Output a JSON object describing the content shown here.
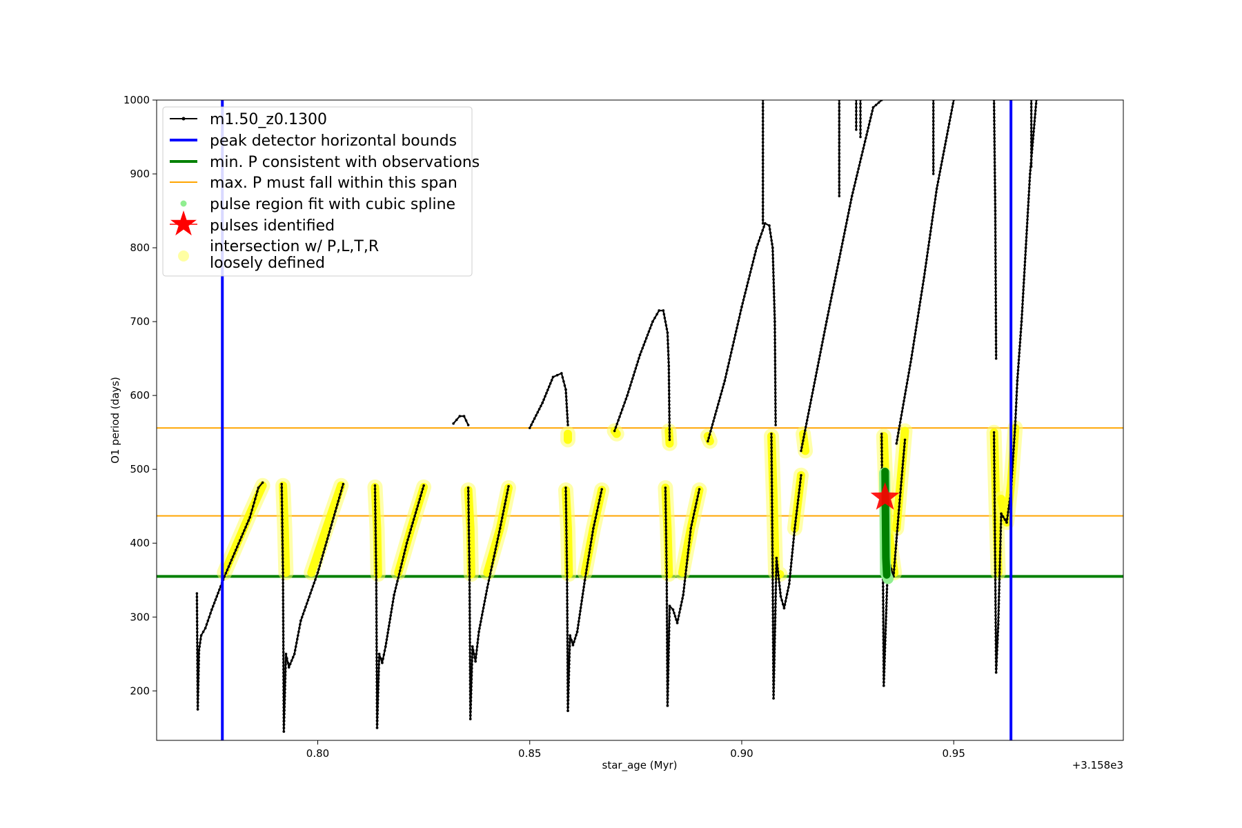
{
  "chart_data": {
    "type": "scatter",
    "xlabel": "star_age (Myr)",
    "ylabel": "O1 period (days)",
    "x_offset_label": "+3.158e3",
    "xlim": [
      3158.762,
      3158.99
    ],
    "ylim": [
      133,
      1000
    ],
    "xticks": [
      {
        "value": 3158.8,
        "label": "0.80"
      },
      {
        "value": 3158.85,
        "label": "0.85"
      },
      {
        "value": 3158.9,
        "label": "0.90"
      },
      {
        "value": 3158.95,
        "label": "0.95"
      }
    ],
    "yticks": [
      {
        "value": 200,
        "label": "200"
      },
      {
        "value": 300,
        "label": "300"
      },
      {
        "value": 400,
        "label": "400"
      },
      {
        "value": 500,
        "label": "500"
      },
      {
        "value": 600,
        "label": "600"
      },
      {
        "value": 700,
        "label": "700"
      },
      {
        "value": 800,
        "label": "800"
      },
      {
        "value": 900,
        "label": "900"
      },
      {
        "value": 1000,
        "label": "1000"
      }
    ],
    "legend_position": "upper-left",
    "legend": [
      {
        "label": "m1.50_z0.1300",
        "style": "black-line-dots"
      },
      {
        "label": "peak detector horizontal bounds",
        "style": "blue-line"
      },
      {
        "label": "min. P consistent with observations",
        "style": "green-line"
      },
      {
        "label": "max. P must fall within this span",
        "style": "orange-line"
      },
      {
        "label": "pulse region fit with cubic spline",
        "style": "lightgreen-dot"
      },
      {
        "label": "pulses identified",
        "style": "red-star"
      },
      {
        "label": "intersection w/ P,L,T,R",
        "label2": "loosely defined",
        "style": "yellow-dot"
      }
    ],
    "vlines": [
      {
        "name": "peak detector horizontal bounds",
        "x": 3158.7775,
        "color": "#0000ff"
      },
      {
        "name": "peak detector horizontal bounds",
        "x": 3158.9635,
        "color": "#0000ff"
      }
    ],
    "hlines": [
      {
        "name": "min. P consistent with observations",
        "y": 355,
        "color": "#008000"
      },
      {
        "name": "max. P must fall within this span",
        "y": 556,
        "color": "#ffa500"
      },
      {
        "name": "max. P must fall within this span",
        "y": 437,
        "color": "#ffa500"
      }
    ],
    "series": [
      {
        "name": "m1.50_z0.1300",
        "color": "#000000",
        "segments": [
          [
            [
              3158.7715,
              332
            ],
            [
              3158.7717,
              175
            ],
            [
              3158.772,
              255
            ],
            [
              3158.7725,
              275
            ],
            [
              3158.7735,
              285
            ],
            [
              3158.775,
              310
            ],
            [
              3158.778,
              355
            ],
            [
              3158.781,
              395
            ],
            [
              3158.784,
              435
            ],
            [
              3158.786,
              475
            ],
            [
              3158.787,
              482
            ]
          ],
          [
            [
              3158.7915,
              480
            ],
            [
              3158.7918,
              360
            ],
            [
              3158.792,
              145
            ],
            [
              3158.7925,
              250
            ],
            [
              3158.7932,
              232
            ],
            [
              3158.7945,
              250
            ],
            [
              3158.796,
              295
            ],
            [
              3158.8,
              360
            ],
            [
              3158.803,
              420
            ],
            [
              3158.806,
              480
            ]
          ],
          [
            [
              3158.8135,
              478
            ],
            [
              3158.8138,
              355
            ],
            [
              3158.814,
              150
            ],
            [
              3158.8145,
              250
            ],
            [
              3158.8152,
              238
            ],
            [
              3158.816,
              260
            ],
            [
              3158.818,
              330
            ],
            [
              3158.821,
              400
            ],
            [
              3158.825,
              478
            ]
          ],
          [
            [
              3158.8355,
              475
            ],
            [
              3158.8358,
              355
            ],
            [
              3158.836,
              162
            ],
            [
              3158.8365,
              260
            ],
            [
              3158.8372,
              240
            ],
            [
              3158.838,
              280
            ],
            [
              3158.84,
              340
            ],
            [
              3158.843,
              420
            ],
            [
              3158.845,
              477
            ]
          ],
          [
            [
              3158.8585,
              475
            ],
            [
              3158.8588,
              360
            ],
            [
              3158.859,
              173
            ],
            [
              3158.8595,
              275
            ],
            [
              3158.8602,
              262
            ],
            [
              3158.8612,
              280
            ],
            [
              3158.863,
              350
            ],
            [
              3158.865,
              420
            ],
            [
              3158.867,
              473
            ]
          ],
          [
            [
              3158.882,
              475
            ],
            [
              3158.8823,
              360
            ],
            [
              3158.8825,
              180
            ],
            [
              3158.883,
              315
            ],
            [
              3158.8838,
              310
            ],
            [
              3158.8848,
              292
            ],
            [
              3158.8862,
              330
            ],
            [
              3158.888,
              420
            ],
            [
              3158.89,
              473
            ]
          ],
          [
            [
              3158.907,
              548
            ],
            [
              3158.9073,
              360
            ],
            [
              3158.9075,
              190
            ],
            [
              3158.9082,
              380
            ],
            [
              3158.9092,
              328
            ],
            [
              3158.91,
              312
            ],
            [
              3158.9112,
              345
            ],
            [
              3158.9125,
              420
            ],
            [
              3158.914,
              492
            ]
          ],
          [
            [
              3158.933,
              548
            ],
            [
              3158.9333,
              370
            ],
            [
              3158.9335,
              207
            ],
            [
              3158.9345,
              380
            ],
            [
              3158.9358,
              355
            ],
            [
              3158.937,
              440
            ],
            [
              3158.9385,
              540
            ]
          ],
          [
            [
              3158.9595,
              550
            ],
            [
              3158.9598,
              360
            ],
            [
              3158.96,
              225
            ],
            [
              3158.9605,
              290
            ],
            [
              3158.9612,
              440
            ],
            [
              3158.9625,
              428
            ],
            [
              3158.9635,
              470
            ],
            [
              3158.9645,
              560
            ],
            [
              3158.965,
              620
            ],
            [
              3158.966,
              700
            ],
            [
              3158.967,
              800
            ],
            [
              3158.968,
              900
            ],
            [
              3158.9695,
              1000
            ]
          ],
          [
            [
              3158.832,
              562
            ],
            [
              3158.8335,
              572
            ],
            [
              3158.8345,
              572
            ],
            [
              3158.8355,
              560
            ]
          ],
          [
            [
              3158.85,
              556
            ],
            [
              3158.853,
              590
            ],
            [
              3158.8555,
              625
            ],
            [
              3158.8575,
              630
            ],
            [
              3158.8585,
              608
            ],
            [
              3158.859,
              560
            ]
          ],
          [
            [
              3158.87,
              552
            ],
            [
              3158.873,
              600
            ],
            [
              3158.876,
              655
            ],
            [
              3158.879,
              700
            ],
            [
              3158.8805,
              715
            ],
            [
              3158.8815,
              715
            ],
            [
              3158.8825,
              685
            ],
            [
              3158.8828,
              640
            ],
            [
              3158.883,
              540
            ]
          ],
          [
            [
              3158.892,
              538
            ],
            [
              3158.896,
              620
            ],
            [
              3158.9,
              720
            ],
            [
              3158.9035,
              800
            ],
            [
              3158.9055,
              833
            ],
            [
              3158.9065,
              830
            ],
            [
              3158.9073,
              800
            ],
            [
              3158.9078,
              700
            ],
            [
              3158.908,
              560
            ]
          ],
          [
            [
              3158.914,
              525
            ],
            [
              3158.92,
              700
            ],
            [
              3158.926,
              870
            ],
            [
              3158.931,
              990
            ],
            [
              3158.933,
              1000
            ]
          ],
          [
            [
              3158.9365,
              535
            ],
            [
              3158.94,
              650
            ],
            [
              3158.943,
              760
            ],
            [
              3158.946,
              880
            ],
            [
              3158.95,
              1000
            ]
          ],
          [
            [
              3158.905,
              1000
            ],
            [
              3158.905,
              833
            ]
          ],
          [
            [
              3158.923,
              1000
            ],
            [
              3158.923,
              870
            ]
          ],
          [
            [
              3158.927,
              1000
            ],
            [
              3158.927,
              960
            ]
          ],
          [
            [
              3158.928,
              1000
            ],
            [
              3158.928,
              950
            ]
          ],
          [
            [
              3158.9452,
              1000
            ],
            [
              3158.9452,
              900
            ]
          ],
          [
            [
              3158.9595,
              1000
            ],
            [
              3158.9598,
              850
            ],
            [
              3158.96,
              650
            ]
          ],
          [
            [
              3158.9683,
              1000
            ],
            [
              3158.9683,
              910
            ]
          ]
        ]
      },
      {
        "name": "intersection w/ P,L,T,R loosely defined",
        "color": "#ffff00",
        "segments": [
          [
            [
              3158.778,
              360
            ],
            [
              3158.781,
              400
            ],
            [
              3158.784,
              440
            ],
            [
              3158.787,
              478
            ]
          ],
          [
            [
              3158.7918,
              478
            ],
            [
              3158.7922,
              420
            ],
            [
              3158.7925,
              360
            ]
          ],
          [
            [
              3158.7985,
              360
            ],
            [
              3158.802,
              420
            ],
            [
              3158.8055,
              478
            ]
          ],
          [
            [
              3158.8135,
              476
            ],
            [
              3158.814,
              420
            ],
            [
              3158.8142,
              358
            ]
          ],
          [
            [
              3158.819,
              360
            ],
            [
              3158.822,
              420
            ],
            [
              3158.825,
              476
            ]
          ],
          [
            [
              3158.8355,
              472
            ],
            [
              3158.836,
              420
            ],
            [
              3158.8362,
              358
            ]
          ],
          [
            [
              3158.84,
              360
            ],
            [
              3158.843,
              420
            ],
            [
              3158.845,
              475
            ]
          ],
          [
            [
              3158.8585,
              472
            ],
            [
              3158.859,
              420
            ],
            [
              3158.8592,
              358
            ]
          ],
          [
            [
              3158.863,
              360
            ],
            [
              3158.865,
              420
            ],
            [
              3158.867,
              472
            ]
          ],
          [
            [
              3158.882,
              475
            ],
            [
              3158.8825,
              420
            ],
            [
              3158.8828,
              358
            ]
          ],
          [
            [
              3158.886,
              360
            ],
            [
              3158.888,
              420
            ],
            [
              3158.89,
              472
            ]
          ],
          [
            [
              3158.907,
              545
            ],
            [
              3158.9075,
              460
            ],
            [
              3158.908,
              360
            ],
            [
              3158.909,
              358
            ]
          ],
          [
            [
              3158.9125,
              420
            ],
            [
              3158.914,
              492
            ]
          ],
          [
            [
              3158.9335,
              545
            ],
            [
              3158.934,
              470
            ],
            [
              3158.935,
              400
            ],
            [
              3158.936,
              360
            ]
          ],
          [
            [
              3158.9365,
              420
            ],
            [
              3158.9385,
              552
            ]
          ],
          [
            [
              3158.9595,
              550
            ],
            [
              3158.96,
              450
            ],
            [
              3158.9605,
              360
            ]
          ],
          [
            [
              3158.9612,
              460
            ],
            [
              3158.9625,
              428
            ],
            [
              3158.9635,
              480
            ],
            [
              3158.9645,
              556
            ]
          ],
          [
            [
              3158.859,
              548
            ],
            [
              3158.859,
              540
            ]
          ],
          [
            [
              3158.87,
              552
            ],
            [
              3158.8705,
              548
            ]
          ],
          [
            [
              3158.8828,
              552
            ],
            [
              3158.883,
              535
            ]
          ],
          [
            [
              3158.892,
              545
            ],
            [
              3158.8925,
              538
            ]
          ],
          [
            [
              3158.9145,
              548
            ],
            [
              3158.915,
              525
            ]
          ]
        ]
      },
      {
        "name": "pulse region fit with cubic spline",
        "color": "#90ee90",
        "segments": [
          [
            [
              3158.9337,
              495
            ],
            [
              3158.9338,
              430
            ],
            [
              3158.9339,
              360
            ],
            [
              3158.9345,
              352
            ]
          ]
        ]
      },
      {
        "name": "pulse region fit with cubic spline (dense)",
        "color": "#008000",
        "segments": [
          [
            [
              3158.9338,
              497
            ],
            [
              3158.9339,
              440
            ],
            [
              3158.934,
              380
            ],
            [
              3158.9342,
              357
            ]
          ]
        ]
      },
      {
        "name": "pulses identified",
        "color": "#ff0000",
        "points": [
          [
            3158.9338,
            462
          ]
        ]
      }
    ]
  }
}
